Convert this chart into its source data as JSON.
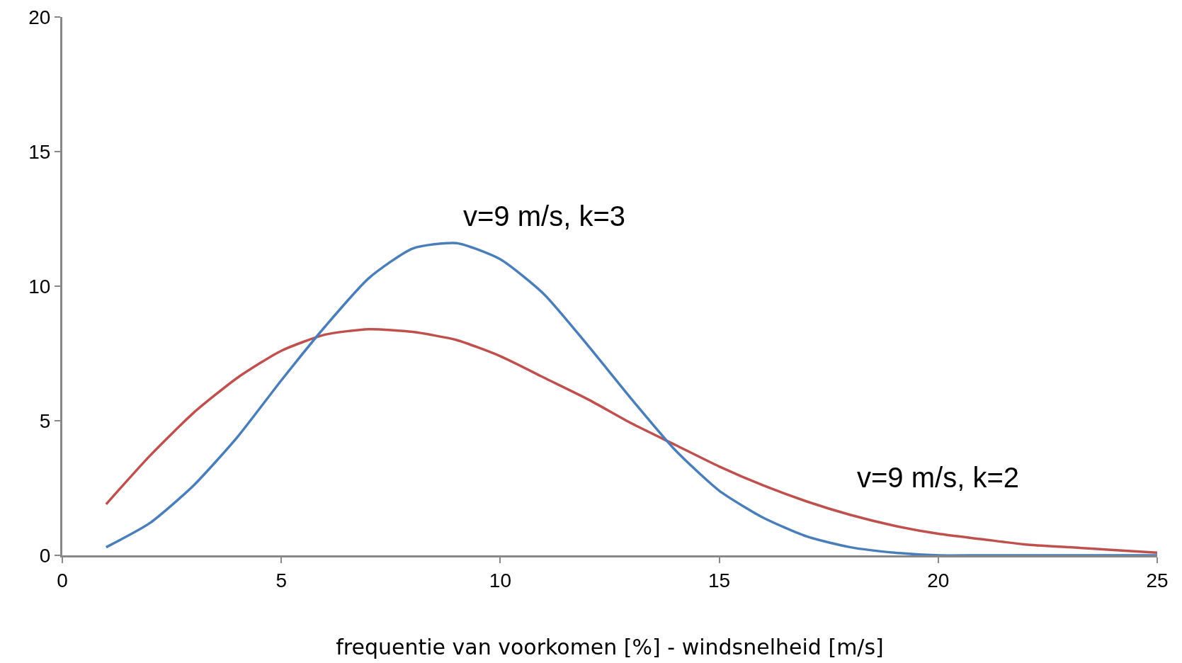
{
  "chart_data": {
    "type": "line",
    "xlabel": "frequentie van voorkomen [%] - windsnelheid [m/s]",
    "x": [
      1,
      2,
      3,
      4,
      5,
      6,
      7,
      8,
      9,
      10,
      11,
      12,
      13,
      14,
      15,
      16,
      17,
      18,
      19,
      20,
      21,
      22,
      23,
      24,
      25
    ],
    "series": [
      {
        "color": "#c0504d",
        "values": [
          1.9,
          3.7,
          5.3,
          6.6,
          7.6,
          8.2,
          8.4,
          8.3,
          8.0,
          7.4,
          6.6,
          5.8,
          4.9,
          4.1,
          3.3,
          2.6,
          2.0,
          1.5,
          1.1,
          0.8,
          0.6,
          0.4,
          0.3,
          0.2,
          0.1
        ]
      },
      {
        "color": "#4a7ebb",
        "values": [
          0.3,
          1.2,
          2.6,
          4.4,
          6.5,
          8.5,
          10.3,
          11.4,
          11.6,
          11.0,
          9.7,
          7.8,
          5.8,
          3.9,
          2.4,
          1.4,
          0.7,
          0.3,
          0.1,
          0.0,
          0.0,
          0.0,
          0.0,
          0.0,
          0.0
        ]
      }
    ],
    "annotations": [
      "v=9 m/s, k=3",
      "v=9 m/s, k=2"
    ],
    "xlim": [
      0,
      25
    ],
    "xticks": [
      0,
      5,
      10,
      15,
      20,
      25
    ],
    "ylim": [
      0,
      20
    ],
    "yticks": [
      0,
      5,
      10,
      15,
      20
    ],
    "grid": false,
    "marker": "none",
    "line_style": "solid"
  }
}
